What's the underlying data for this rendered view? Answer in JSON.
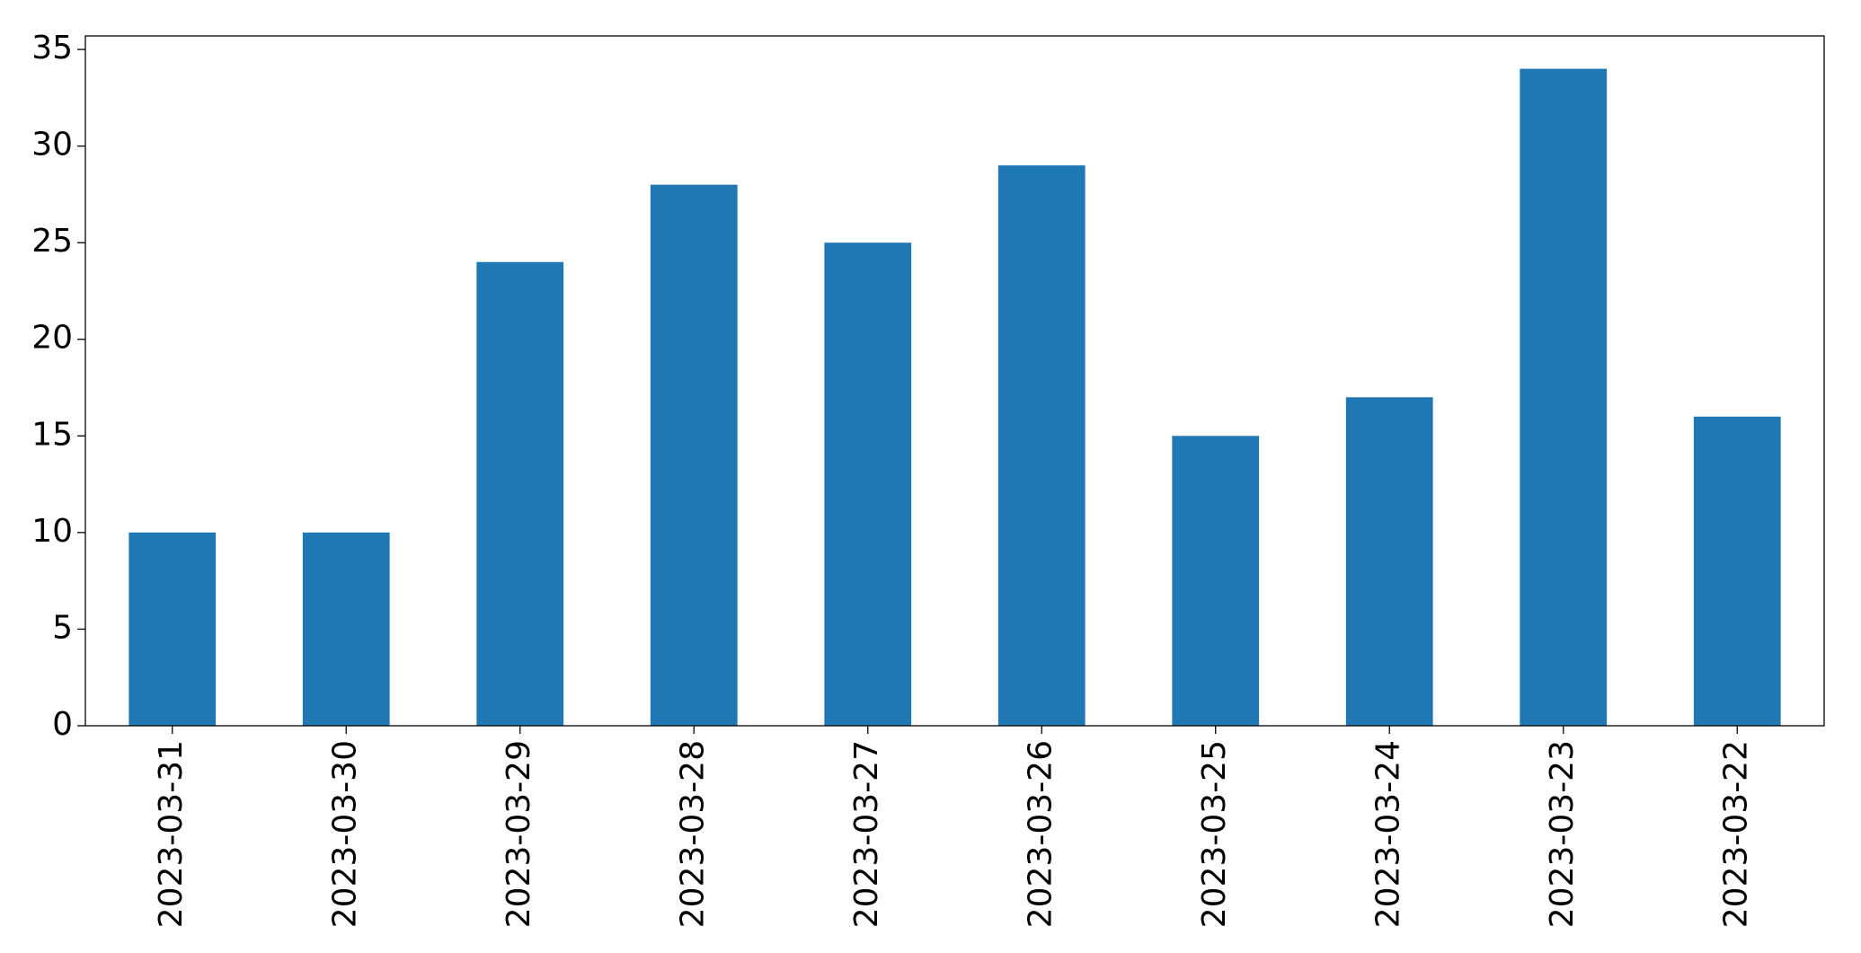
{
  "chart_data": {
    "type": "bar",
    "categories": [
      "2023-03-31",
      "2023-03-30",
      "2023-03-29",
      "2023-03-28",
      "2023-03-27",
      "2023-03-26",
      "2023-03-25",
      "2023-03-24",
      "2023-03-23",
      "2023-03-22"
    ],
    "values": [
      10,
      10,
      24,
      28,
      25,
      29,
      15,
      17,
      34,
      16
    ],
    "color": "#1f77b4",
    "ylim": [
      0,
      35.7
    ],
    "yticks": [
      0,
      5,
      10,
      15,
      20,
      25,
      30,
      35
    ],
    "grid": false
  }
}
